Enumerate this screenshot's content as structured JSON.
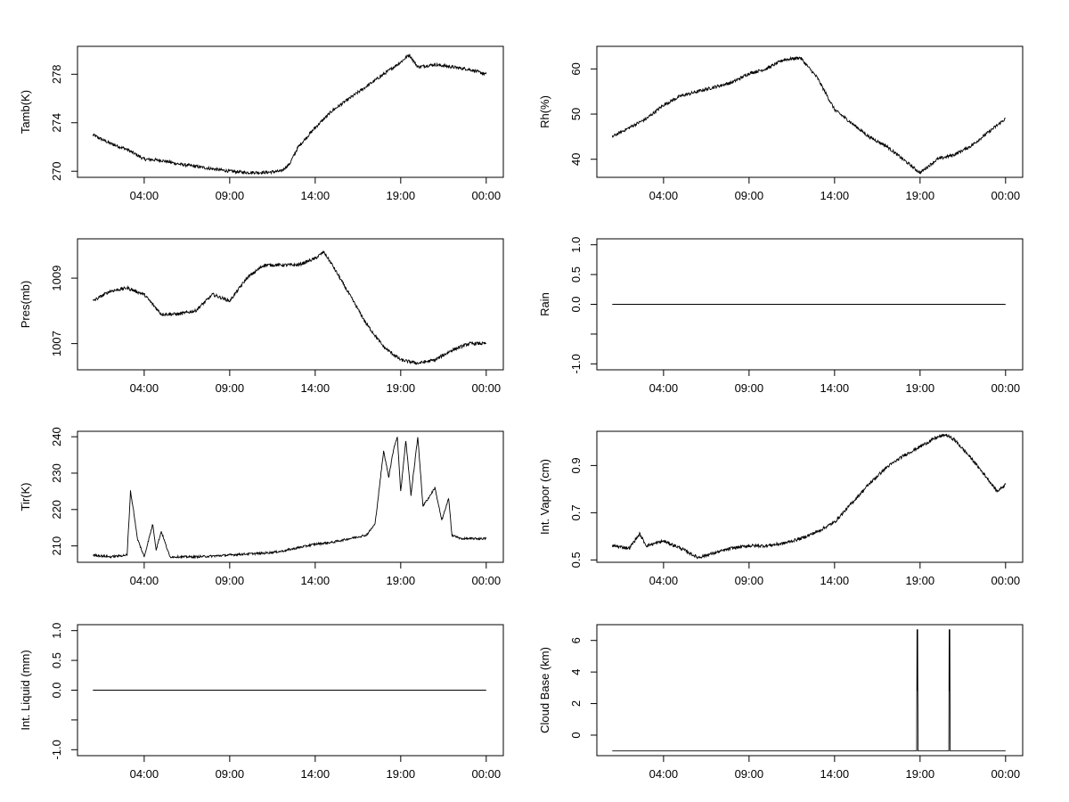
{
  "chart_data": [
    {
      "id": "tamb",
      "type": "line",
      "ylabel": "Tamb(K)",
      "x_tick_labels": [
        "04:00",
        "09:00",
        "14:00",
        "19:00",
        "00:00"
      ],
      "x_ticks": [
        4,
        9,
        14,
        19,
        24
      ],
      "xlim": [
        0.1,
        25
      ],
      "y_ticks": [
        270,
        274,
        278
      ],
      "y_tick_labels": [
        "270",
        "274",
        "278"
      ],
      "ylim": [
        269.5,
        280.3
      ],
      "series": [
        {
          "name": "Tamb",
          "x": [
            1,
            2,
            3,
            4,
            5,
            6,
            7,
            8,
            9,
            10,
            11,
            12,
            12.5,
            13,
            14,
            15,
            16,
            17,
            18,
            19,
            19.5,
            20,
            21,
            22,
            23,
            24
          ],
          "y": [
            273,
            272.3,
            271.8,
            271,
            270.9,
            270.6,
            270.4,
            270.2,
            270,
            269.9,
            269.9,
            270,
            270.6,
            272,
            273.6,
            275,
            276,
            277,
            278,
            279,
            279.6,
            278.6,
            278.8,
            278.6,
            278.4,
            278
          ]
        }
      ]
    },
    {
      "id": "rh",
      "type": "line",
      "ylabel": "Rh(%)",
      "x_tick_labels": [
        "04:00",
        "09:00",
        "14:00",
        "19:00",
        "00:00"
      ],
      "x_ticks": [
        4,
        9,
        14,
        19,
        24
      ],
      "xlim": [
        0.1,
        25
      ],
      "y_ticks": [
        40,
        50,
        60
      ],
      "y_tick_labels": [
        "40",
        "50",
        "60"
      ],
      "ylim": [
        36,
        65
      ],
      "series": [
        {
          "name": "Rh",
          "x": [
            1,
            2,
            3,
            4,
            5,
            6,
            7,
            8,
            9,
            10,
            11,
            12,
            13,
            14,
            15,
            16,
            17,
            18,
            19,
            20,
            21,
            22,
            23,
            24
          ],
          "y": [
            45,
            47,
            49,
            52,
            54,
            55,
            56,
            57,
            59,
            60,
            62,
            62.5,
            58,
            51,
            48,
            45,
            43,
            40,
            37,
            40,
            41,
            43,
            46,
            49
          ]
        }
      ]
    },
    {
      "id": "pres",
      "type": "line",
      "ylabel": "Pres(mb)",
      "x_tick_labels": [
        "04:00",
        "09:00",
        "14:00",
        "19:00",
        "00:00"
      ],
      "x_ticks": [
        4,
        9,
        14,
        19,
        24
      ],
      "xlim": [
        0.1,
        25
      ],
      "y_ticks": [
        1007,
        1009
      ],
      "y_tick_labels": [
        "1007",
        "1009"
      ],
      "ylim": [
        1006.2,
        1010.2
      ],
      "series": [
        {
          "name": "Pres",
          "x": [
            1,
            2,
            3,
            4,
            5,
            6,
            7,
            8,
            9,
            10,
            11,
            12,
            13,
            14,
            14.5,
            15,
            16,
            17,
            18,
            19,
            20,
            21,
            22,
            23,
            24
          ],
          "y": [
            1008.3,
            1008.6,
            1008.7,
            1008.5,
            1007.9,
            1007.9,
            1008,
            1008.5,
            1008.3,
            1009,
            1009.4,
            1009.4,
            1009.4,
            1009.6,
            1009.8,
            1009.4,
            1008.5,
            1007.6,
            1006.9,
            1006.5,
            1006.4,
            1006.5,
            1006.8,
            1007,
            1007
          ]
        }
      ]
    },
    {
      "id": "rain",
      "type": "line",
      "ylabel": "Rain",
      "x_tick_labels": [
        "04:00",
        "09:00",
        "14:00",
        "19:00",
        "00:00"
      ],
      "x_ticks": [
        4,
        9,
        14,
        19,
        24
      ],
      "xlim": [
        0.1,
        25
      ],
      "y_ticks": [
        -1.0,
        -0.5,
        0.0,
        0.5,
        1.0
      ],
      "y_tick_labels": [
        "-1.0",
        "",
        "0.0",
        "0.5",
        "1.0"
      ],
      "ylim": [
        -1.1,
        1.1
      ],
      "series": [
        {
          "name": "Rain",
          "x": [
            1,
            24
          ],
          "y": [
            0,
            0
          ]
        }
      ]
    },
    {
      "id": "tir",
      "type": "line",
      "ylabel": "Tir(K)",
      "x_tick_labels": [
        "04:00",
        "09:00",
        "14:00",
        "19:00",
        "00:00"
      ],
      "x_ticks": [
        4,
        9,
        14,
        19,
        24
      ],
      "xlim": [
        0.1,
        25
      ],
      "y_ticks": [
        210,
        220,
        230,
        240
      ],
      "y_tick_labels": [
        "210",
        "220",
        "230",
        "240"
      ],
      "ylim": [
        205.5,
        241.5
      ],
      "series": [
        {
          "name": "Tir",
          "x": [
            1,
            2,
            3,
            3.2,
            3.4,
            3.6,
            4,
            4.5,
            4.7,
            5,
            5.5,
            6,
            7,
            8,
            9,
            10,
            11,
            12,
            13,
            14,
            15,
            16,
            17,
            17.5,
            18,
            18.3,
            18.6,
            18.8,
            19,
            19.3,
            19.6,
            20,
            20.3,
            20.6,
            21,
            21.4,
            21.8,
            22,
            22.5,
            23,
            23.4,
            23.8,
            24
          ],
          "y": [
            207.5,
            207,
            207.5,
            225,
            219,
            212,
            207,
            216,
            209,
            214,
            207,
            207,
            207,
            207.2,
            207.5,
            207.8,
            208,
            208.5,
            209.5,
            210.5,
            211,
            212,
            213,
            216,
            236,
            229,
            237,
            240,
            225,
            239,
            224,
            240,
            221,
            223,
            226,
            217,
            223,
            213,
            212,
            212,
            212,
            212,
            212
          ]
        }
      ]
    },
    {
      "id": "vapor",
      "type": "line",
      "ylabel": "Int. Vapor (cm)",
      "x_tick_labels": [
        "04:00",
        "09:00",
        "14:00",
        "19:00",
        "00:00"
      ],
      "x_ticks": [
        4,
        9,
        14,
        19,
        24
      ],
      "xlim": [
        0.1,
        25
      ],
      "y_ticks": [
        0.5,
        0.7,
        0.9
      ],
      "y_tick_labels": [
        "0.5",
        "0.7",
        "0.9"
      ],
      "ylim": [
        0.49,
        1.045
      ],
      "series": [
        {
          "name": "Int. Vapor",
          "x": [
            1,
            2,
            2.6,
            3,
            4,
            5,
            6,
            7,
            8,
            9,
            10,
            11,
            12,
            13,
            14,
            15,
            16,
            17,
            18,
            19,
            20,
            20.5,
            21,
            22,
            23,
            23.5,
            24
          ],
          "y": [
            0.56,
            0.55,
            0.61,
            0.56,
            0.58,
            0.55,
            0.51,
            0.53,
            0.55,
            0.56,
            0.56,
            0.57,
            0.59,
            0.62,
            0.66,
            0.74,
            0.82,
            0.89,
            0.94,
            0.98,
            1.02,
            1.03,
            1.01,
            0.93,
            0.84,
            0.79,
            0.82
          ]
        }
      ]
    },
    {
      "id": "liquid",
      "type": "line",
      "ylabel": "Int. Liquid (mm)",
      "x_tick_labels": [
        "04:00",
        "09:00",
        "14:00",
        "19:00",
        "00:00"
      ],
      "x_ticks": [
        4,
        9,
        14,
        19,
        24
      ],
      "xlim": [
        0.1,
        25
      ],
      "y_ticks": [
        -1.0,
        -0.5,
        0.0,
        0.5,
        1.0
      ],
      "y_tick_labels": [
        "-1.0",
        "",
        "0.0",
        "0.5",
        "1.0"
      ],
      "ylim": [
        -1.1,
        1.1
      ],
      "series": [
        {
          "name": "Int. Liquid",
          "x": [
            1,
            24
          ],
          "y": [
            0,
            0
          ]
        }
      ]
    },
    {
      "id": "cloudbase",
      "type": "line",
      "ylabel": "Cloud Base (km)",
      "x_tick_labels": [
        "04:00",
        "09:00",
        "14:00",
        "19:00",
        "00:00"
      ],
      "x_ticks": [
        4,
        9,
        14,
        19,
        24
      ],
      "xlim": [
        0.1,
        25
      ],
      "y_ticks": [
        0,
        2,
        4,
        6
      ],
      "y_tick_labels": [
        "0",
        "2",
        "4",
        "6"
      ],
      "ylim": [
        -1.3,
        7
      ],
      "series": [
        {
          "name": "Cloud Base",
          "x": [
            1,
            18.8,
            18.82,
            18.84,
            18.86,
            18.88,
            20.68,
            20.7,
            20.72,
            20.74,
            20.76,
            24
          ],
          "y": [
            -1,
            -1,
            6.7,
            2.8,
            6.7,
            -1,
            -1,
            6.7,
            2.8,
            6.7,
            -1,
            -1
          ]
        }
      ]
    }
  ]
}
